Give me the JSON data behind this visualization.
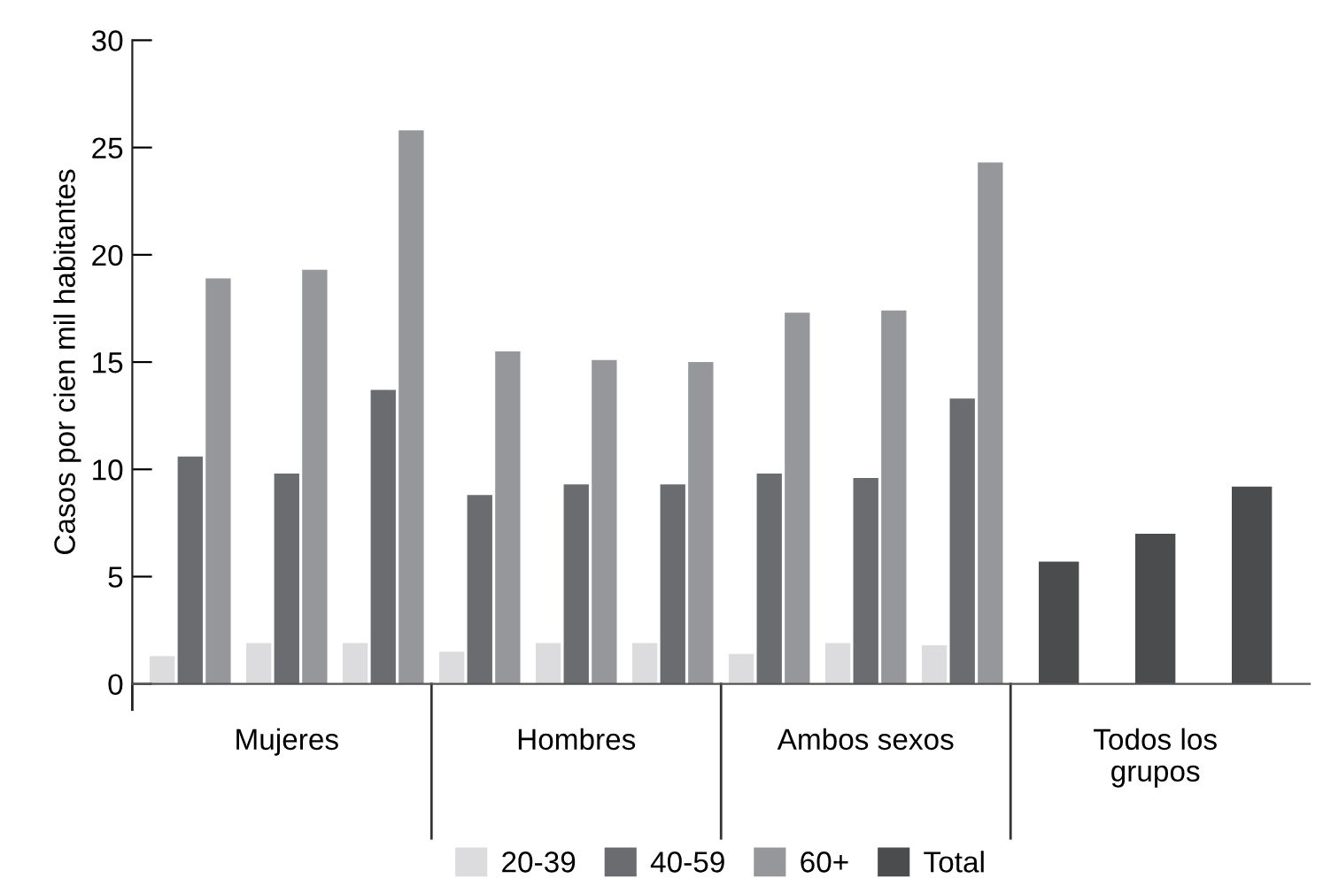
{
  "chart_data": {
    "type": "bar",
    "ylabel": "Casos por cien mil habitantes",
    "categories": [
      null,
      "Mujeres",
      null,
      null,
      "Hombres",
      null,
      null,
      "Ambos sexos",
      null,
      null,
      "Todos los\ngrupos",
      null
    ],
    "series": [
      {
        "name": "20-39",
        "color": "#dcdcde",
        "values": [
          1.3,
          1.9,
          1.9,
          1.5,
          1.9,
          1.9,
          1.4,
          1.9,
          1.8,
          null,
          null,
          null
        ]
      },
      {
        "name": "40-59",
        "color": "#6b6c70",
        "values": [
          10.6,
          9.8,
          13.7,
          8.8,
          9.3,
          9.3,
          9.8,
          9.6,
          13.3,
          null,
          null,
          null
        ]
      },
      {
        "name": "60+",
        "color": "#96979b",
        "values": [
          18.9,
          19.3,
          25.8,
          15.5,
          15.1,
          15.0,
          17.3,
          17.4,
          24.3,
          null,
          null,
          null
        ]
      },
      {
        "name": "Total",
        "color": "#4b4c4e",
        "values": [
          null,
          null,
          null,
          null,
          null,
          null,
          null,
          null,
          null,
          5.7,
          7.0,
          9.2
        ]
      }
    ],
    "ylim": [
      0,
      30
    ],
    "yticks": [
      0,
      5,
      10,
      15,
      20,
      25,
      30
    ],
    "grid": false,
    "legend": "bottom"
  }
}
